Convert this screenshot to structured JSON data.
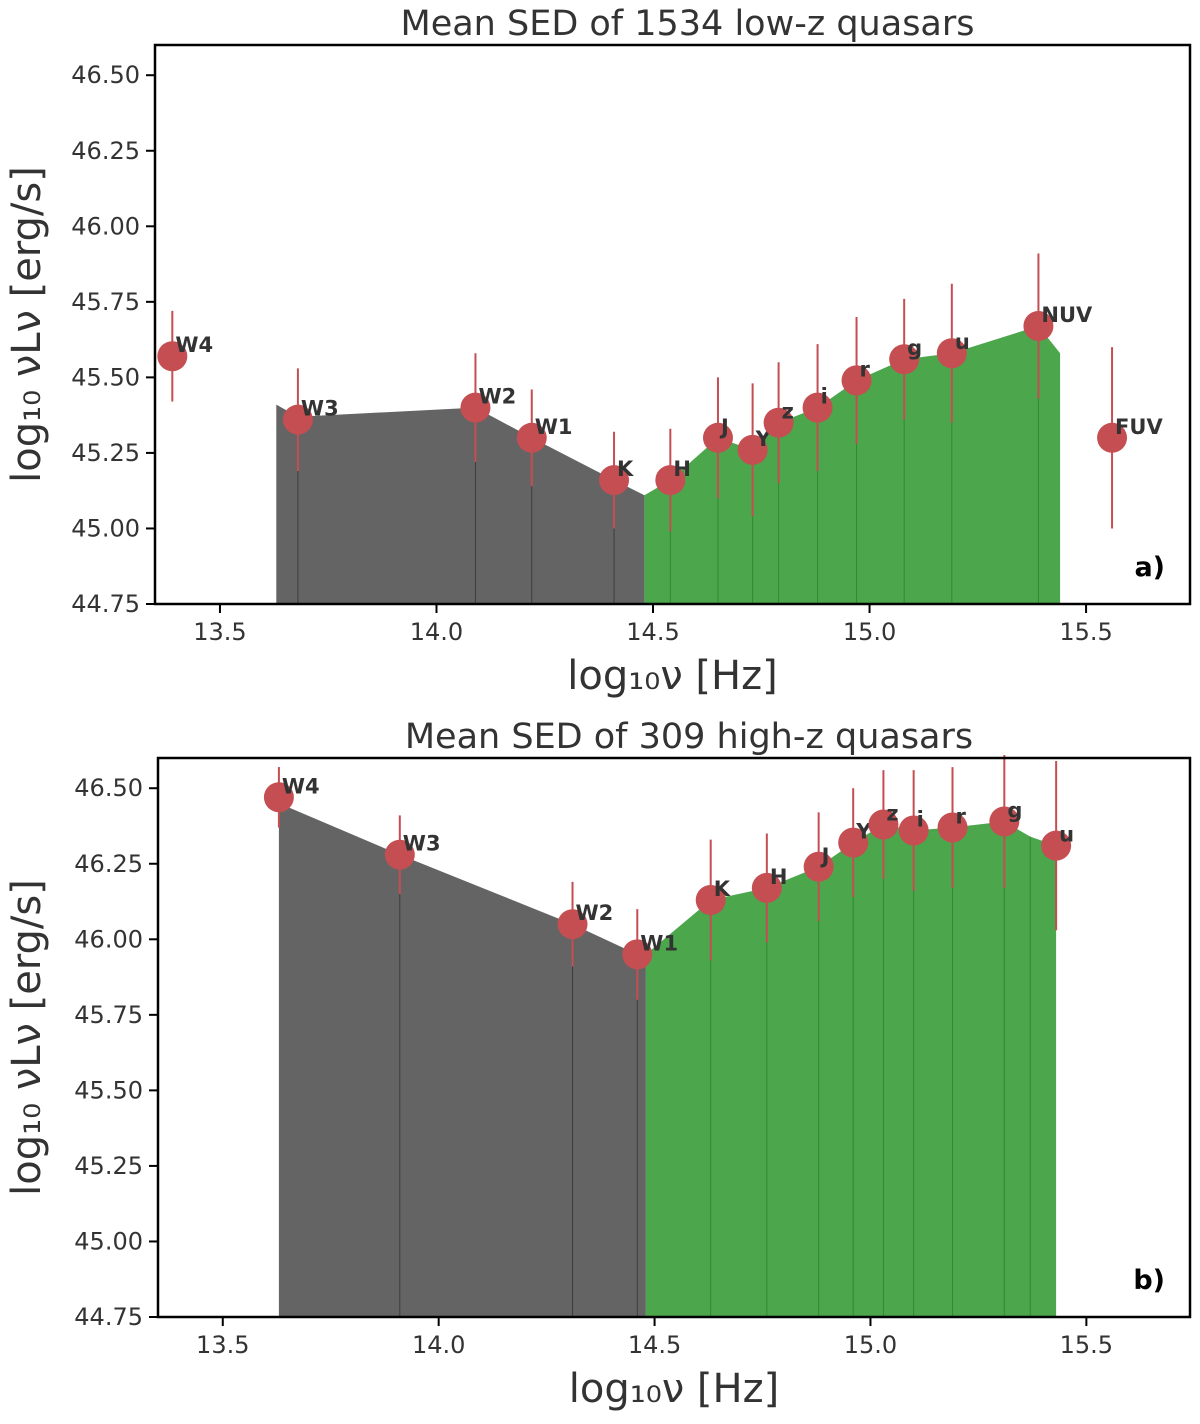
{
  "chart_data": [
    {
      "type": "scatter",
      "panel_label": "a)",
      "title": "Mean SED of 1534 low-z quasars",
      "xlabel": "log₁₀ν [Hz]",
      "ylabel": "log₁₀ νLν [erg/s]",
      "xlim": [
        13.35,
        15.74
      ],
      "ylim": [
        44.75,
        46.6
      ],
      "xticks": [
        "13.5",
        "14.0",
        "14.5",
        "15.0",
        "15.5"
      ],
      "yticks": [
        "44.75",
        "45.00",
        "45.25",
        "45.50",
        "45.75",
        "46.00",
        "46.25",
        "46.50"
      ],
      "grid": false,
      "colors": {
        "points": "#c44e52",
        "ir_fill": "#646464",
        "opt_fill": "#4ca64c",
        "text": "#333333"
      },
      "ir_region": {
        "x": [
          13.63,
          13.68,
          14.09,
          14.22,
          14.41,
          14.48
        ],
        "y": [
          45.41,
          45.37,
          45.4,
          45.3,
          45.16,
          45.11
        ]
      },
      "opt_region": {
        "x": [
          14.48,
          14.54,
          14.65,
          14.73,
          14.79,
          14.88,
          14.97,
          15.08,
          15.19,
          15.39,
          15.44
        ],
        "y": [
          45.11,
          45.16,
          45.3,
          45.26,
          45.35,
          45.4,
          45.49,
          45.56,
          45.58,
          45.67,
          45.58
        ]
      },
      "points": [
        {
          "label": "W4",
          "x": 13.39,
          "y": 45.57,
          "err": 0.15
        },
        {
          "label": "W3",
          "x": 13.68,
          "y": 45.36,
          "err": 0.17
        },
        {
          "label": "W2",
          "x": 14.09,
          "y": 45.4,
          "err": 0.18
        },
        {
          "label": "W1",
          "x": 14.22,
          "y": 45.3,
          "err": 0.16
        },
        {
          "label": "K",
          "x": 14.41,
          "y": 45.16,
          "err": 0.16
        },
        {
          "label": "H",
          "x": 14.54,
          "y": 45.16,
          "err": 0.17
        },
        {
          "label": "J",
          "x": 14.65,
          "y": 45.3,
          "err": 0.2
        },
        {
          "label": "Y",
          "x": 14.73,
          "y": 45.26,
          "err": 0.22
        },
        {
          "label": "z",
          "x": 14.79,
          "y": 45.35,
          "err": 0.2
        },
        {
          "label": "i",
          "x": 14.88,
          "y": 45.4,
          "err": 0.21
        },
        {
          "label": "r",
          "x": 14.97,
          "y": 45.49,
          "err": 0.21
        },
        {
          "label": "g",
          "x": 15.08,
          "y": 45.56,
          "err": 0.2
        },
        {
          "label": "u",
          "x": 15.19,
          "y": 45.58,
          "err": 0.23
        },
        {
          "label": "NUV",
          "x": 15.39,
          "y": 45.67,
          "err": 0.24
        },
        {
          "label": "FUV",
          "x": 15.56,
          "y": 45.3,
          "err": 0.3
        }
      ]
    },
    {
      "type": "scatter",
      "panel_label": "b)",
      "title": "Mean SED of 309 high-z quasars",
      "xlabel": "log₁₀ν [Hz]",
      "ylabel": "log₁₀ νLν [erg/s]",
      "xlim": [
        13.35,
        15.74
      ],
      "ylim": [
        44.75,
        46.6
      ],
      "xticks": [
        "13.5",
        "14.0",
        "14.5",
        "15.0",
        "15.5"
      ],
      "yticks": [
        "44.75",
        "45.00",
        "45.25",
        "45.50",
        "45.75",
        "46.00",
        "46.25",
        "46.50"
      ],
      "grid": false,
      "colors": {
        "points": "#c44e52",
        "ir_fill": "#646464",
        "opt_fill": "#4ca64c",
        "text": "#333333"
      },
      "ir_region": {
        "x": [
          13.63,
          13.91,
          14.31,
          14.46,
          14.48
        ],
        "y": [
          46.45,
          46.28,
          46.05,
          45.95,
          45.95
        ]
      },
      "opt_region": {
        "x": [
          14.48,
          14.63,
          14.76,
          14.88,
          14.96,
          15.03,
          15.1,
          15.19,
          15.31,
          15.37,
          15.43
        ],
        "y": [
          45.95,
          46.13,
          46.17,
          46.24,
          46.32,
          46.38,
          46.36,
          46.37,
          46.39,
          46.34,
          46.31
        ]
      },
      "points": [
        {
          "label": "W4",
          "x": 13.63,
          "y": 46.47,
          "err": 0.1
        },
        {
          "label": "W3",
          "x": 13.91,
          "y": 46.28,
          "err": 0.13
        },
        {
          "label": "W2",
          "x": 14.31,
          "y": 46.05,
          "err": 0.14
        },
        {
          "label": "W1",
          "x": 14.46,
          "y": 45.95,
          "err": 0.15
        },
        {
          "label": "K",
          "x": 14.63,
          "y": 46.13,
          "err": 0.2
        },
        {
          "label": "H",
          "x": 14.76,
          "y": 46.17,
          "err": 0.18
        },
        {
          "label": "J",
          "x": 14.88,
          "y": 46.24,
          "err": 0.18
        },
        {
          "label": "Y",
          "x": 14.96,
          "y": 46.32,
          "err": 0.18
        },
        {
          "label": "z",
          "x": 15.03,
          "y": 46.38,
          "err": 0.18
        },
        {
          "label": "i",
          "x": 15.1,
          "y": 46.36,
          "err": 0.2
        },
        {
          "label": "r",
          "x": 15.19,
          "y": 46.37,
          "err": 0.2
        },
        {
          "label": "g",
          "x": 15.31,
          "y": 46.39,
          "err": 0.22
        },
        {
          "label": "u",
          "x": 15.43,
          "y": 46.31,
          "err": 0.28
        }
      ]
    }
  ]
}
